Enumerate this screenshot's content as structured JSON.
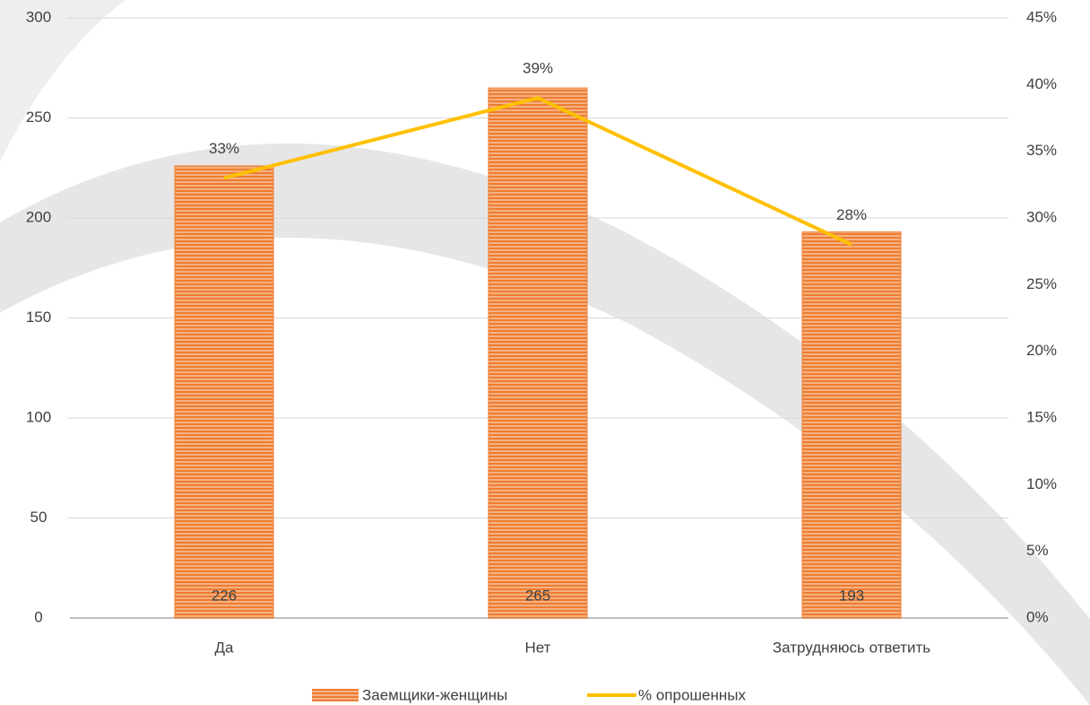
{
  "chart_data": {
    "type": "bar",
    "categories": [
      "Да",
      "Нет",
      "Затрудняюсь ответить"
    ],
    "series": [
      {
        "name": "Заемщики-женщины",
        "type": "bar",
        "color": "#ed7d31",
        "values": [
          226,
          265,
          193
        ]
      },
      {
        "name": "% опрошенных",
        "type": "line",
        "axis": "y2",
        "color": "#ffc000",
        "values": [
          33,
          39,
          28
        ],
        "value_labels": [
          "33%",
          "39%",
          "28%"
        ]
      }
    ],
    "ylim": [
      0,
      300
    ],
    "yticks": [
      0,
      50,
      100,
      150,
      200,
      250,
      300
    ],
    "y2lim": [
      0,
      45
    ],
    "y2ticks": [
      {
        "value": 0,
        "label": "0%"
      },
      {
        "value": 5,
        "label": "5%"
      },
      {
        "value": 10,
        "label": "10%"
      },
      {
        "value": 15,
        "label": "15%"
      },
      {
        "value": 20,
        "label": "20%"
      },
      {
        "value": 25,
        "label": "25%"
      },
      {
        "value": 30,
        "label": "30%"
      },
      {
        "value": 35,
        "label": "35%"
      },
      {
        "value": 40,
        "label": "40%"
      },
      {
        "value": 45,
        "label": "45%"
      }
    ],
    "grid": true,
    "legend": "bottom"
  }
}
